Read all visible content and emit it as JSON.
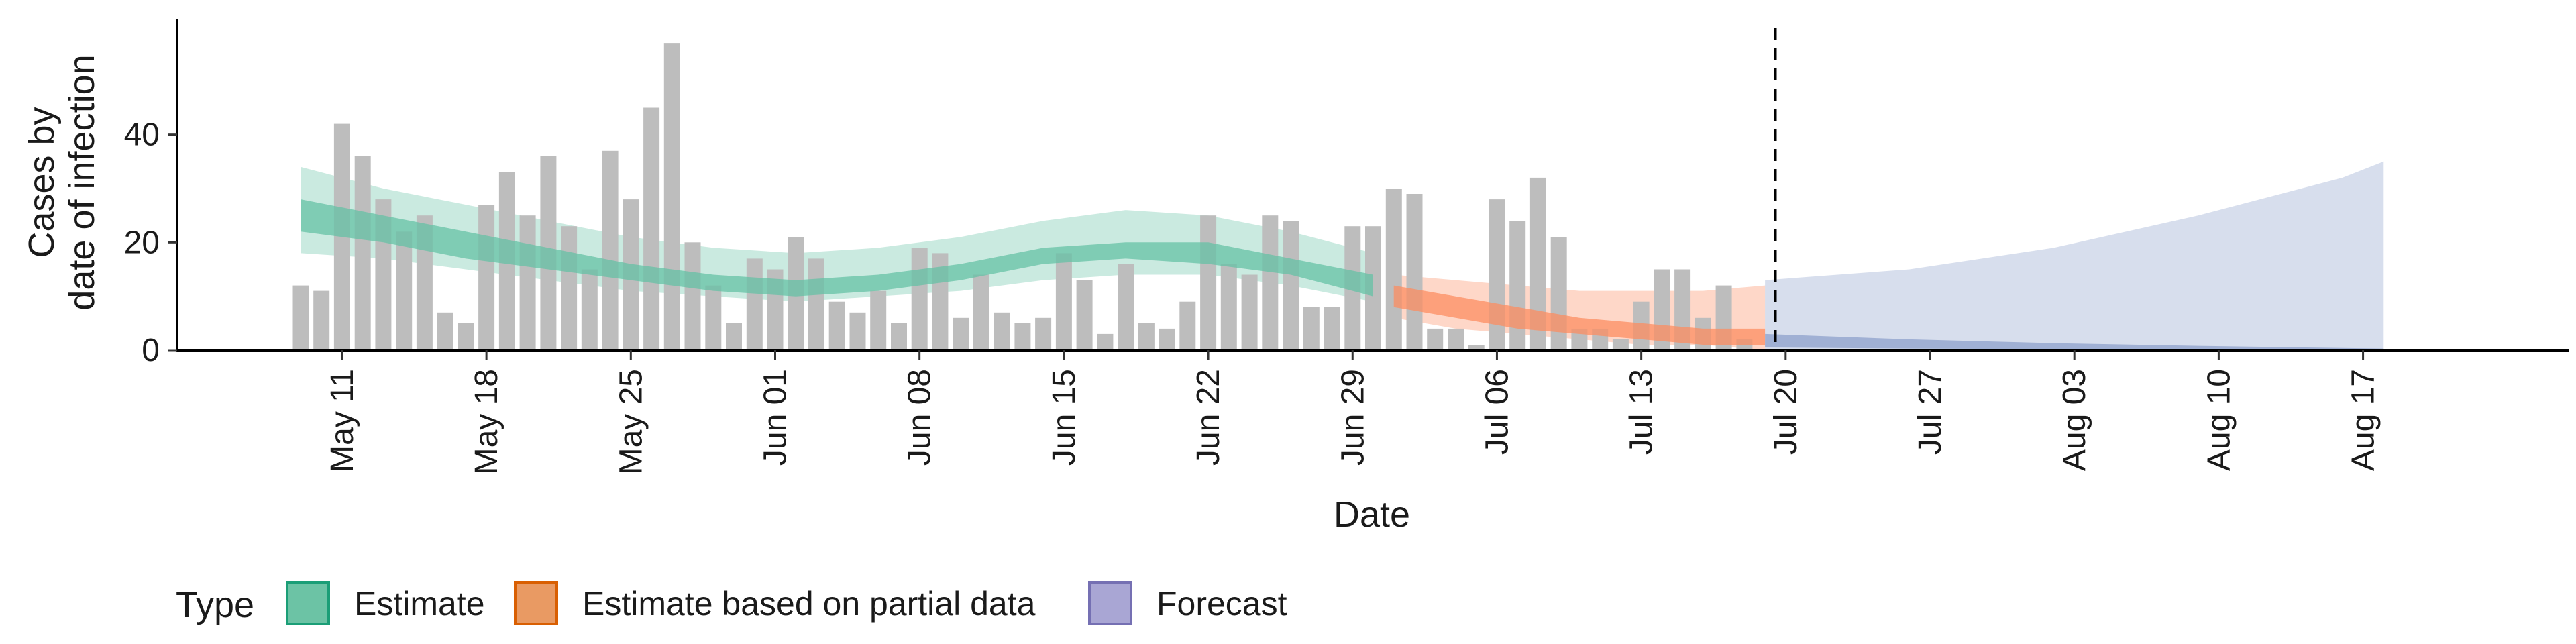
{
  "chart_data": {
    "type": "bar",
    "xlabel": "Date",
    "ylabel": [
      "Cases by",
      "date of infection"
    ],
    "ylim": [
      0,
      60
    ],
    "yticks": [
      0,
      20,
      40
    ],
    "xticks": [
      "May 11",
      "May 18",
      "May 25",
      "Jun 01",
      "Jun 08",
      "Jun 15",
      "Jun 22",
      "Jun 29",
      "Jul 06",
      "Jul 13",
      "Jul 20",
      "Jul 27",
      "Aug 03",
      "Aug 10",
      "Aug 17"
    ],
    "xtick_dates": [
      "2020-05-11",
      "2020-05-18",
      "2020-05-25",
      "2020-06-01",
      "2020-06-08",
      "2020-06-15",
      "2020-06-22",
      "2020-06-29",
      "2020-07-06",
      "2020-07-13",
      "2020-07-20",
      "2020-07-27",
      "2020-08-03",
      "2020-08-10",
      "2020-08-17"
    ],
    "xlim": [
      "2020-05-03",
      "2020-08-27"
    ],
    "grid": false,
    "legend_position": "bottom",
    "cutoff_date": "2020-07-19",
    "observed_cases": {
      "start_date": "2020-05-09",
      "values": [
        12,
        11,
        42,
        36,
        28,
        22,
        25,
        7,
        5,
        27,
        33,
        25,
        36,
        23,
        15,
        37,
        28,
        45,
        57,
        20,
        12,
        5,
        17,
        15,
        21,
        17,
        9,
        7,
        11,
        5,
        19,
        18,
        6,
        14,
        7,
        5,
        6,
        18,
        13,
        3,
        16,
        5,
        4,
        9,
        25,
        16,
        14,
        25,
        24,
        8,
        8,
        23,
        23,
        30,
        29,
        4,
        4,
        1,
        28,
        24,
        32,
        21,
        4,
        4,
        2,
        9,
        15,
        15,
        6,
        12,
        2
      ]
    },
    "series": [
      {
        "name": "Estimate",
        "color": "#1B9E77",
        "fill": "#66C2A5",
        "x": [
          "2020-05-09",
          "2020-05-13",
          "2020-05-17",
          "2020-05-21",
          "2020-05-25",
          "2020-05-29",
          "2020-06-02",
          "2020-06-06",
          "2020-06-10",
          "2020-06-14",
          "2020-06-18",
          "2020-06-22",
          "2020-06-26",
          "2020-06-30"
        ],
        "lower90": [
          18,
          17,
          15,
          13,
          11,
          10,
          9,
          10,
          11,
          13,
          14,
          14,
          12,
          9
        ],
        "upper90": [
          34,
          30,
          27,
          24,
          21,
          19,
          18,
          19,
          21,
          24,
          26,
          25,
          22,
          18
        ],
        "lower50": [
          22,
          20,
          17,
          15,
          13,
          11,
          10,
          11,
          13,
          16,
          17,
          16,
          14,
          10
        ],
        "upper50": [
          28,
          25,
          22,
          19,
          16,
          14,
          13,
          14,
          16,
          19,
          20,
          20,
          17,
          14
        ]
      },
      {
        "name": "Estimate based on partial data",
        "color": "#D95F02",
        "fill": "#FC8D62",
        "x": [
          "2020-07-01",
          "2020-07-04",
          "2020-07-07",
          "2020-07-10",
          "2020-07-13",
          "2020-07-16",
          "2020-07-19"
        ],
        "lower90": [
          6,
          4,
          3,
          2,
          1,
          1,
          0
        ],
        "upper90": [
          14,
          13,
          12,
          11,
          11,
          11,
          12
        ],
        "lower50": [
          8,
          6,
          4,
          3,
          2,
          1,
          1
        ],
        "upper50": [
          12,
          10,
          8,
          6,
          5,
          4,
          4
        ]
      },
      {
        "name": "Forecast",
        "color": "#7570B3",
        "fill": "#8DA0CB",
        "x": [
          "2020-07-19",
          "2020-07-26",
          "2020-08-02",
          "2020-08-09",
          "2020-08-16",
          "2020-08-18"
        ],
        "lower90": [
          0,
          0,
          0,
          0,
          0,
          0
        ],
        "upper90": [
          13,
          15,
          19,
          25,
          32,
          35
        ],
        "lower50": [
          0.5,
          0.3,
          0.2,
          0.1,
          0.05,
          0
        ],
        "upper50": [
          3,
          2,
          1.3,
          0.8,
          0.4,
          0.3
        ]
      }
    ]
  },
  "legend": {
    "title": "Type",
    "items": [
      "Estimate",
      "Estimate based on partial data",
      "Forecast"
    ]
  }
}
